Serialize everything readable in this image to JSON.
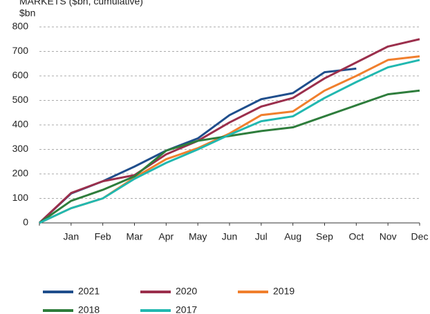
{
  "chart_data": {
    "type": "line",
    "title": "MARKETS ($bn, cumulative)",
    "y_label": "$bn",
    "categories": [
      null,
      "Jan",
      "Feb",
      "Mar",
      "Apr",
      "May",
      "Jun",
      "Jul",
      "Aug",
      "Sep",
      "Oct",
      "Nov",
      "Dec"
    ],
    "series": [
      {
        "name": "2021",
        "color": "#1f4e8c",
        "values": [
          0,
          120,
          170,
          230,
          295,
          345,
          440,
          505,
          530,
          615,
          630,
          null,
          null
        ]
      },
      {
        "name": "2020",
        "color": "#9b2f4c",
        "values": [
          0,
          122,
          170,
          195,
          280,
          335,
          410,
          475,
          510,
          590,
          655,
          720,
          750
        ]
      },
      {
        "name": "2019",
        "color": "#f07f2d",
        "values": [
          0,
          60,
          100,
          185,
          260,
          305,
          365,
          440,
          455,
          540,
          600,
          665,
          680
        ]
      },
      {
        "name": "2018",
        "color": "#2e7d3c",
        "values": [
          0,
          90,
          135,
          190,
          295,
          335,
          355,
          375,
          390,
          435,
          480,
          525,
          540
        ]
      },
      {
        "name": "2017",
        "color": "#21b8b0",
        "values": [
          0,
          60,
          100,
          180,
          245,
          300,
          360,
          415,
          435,
          510,
          575,
          635,
          665
        ]
      }
    ],
    "ylim": [
      0,
      800
    ],
    "yticks": [
      0,
      100,
      200,
      300,
      400,
      500,
      600,
      700,
      800
    ],
    "grid": true
  }
}
